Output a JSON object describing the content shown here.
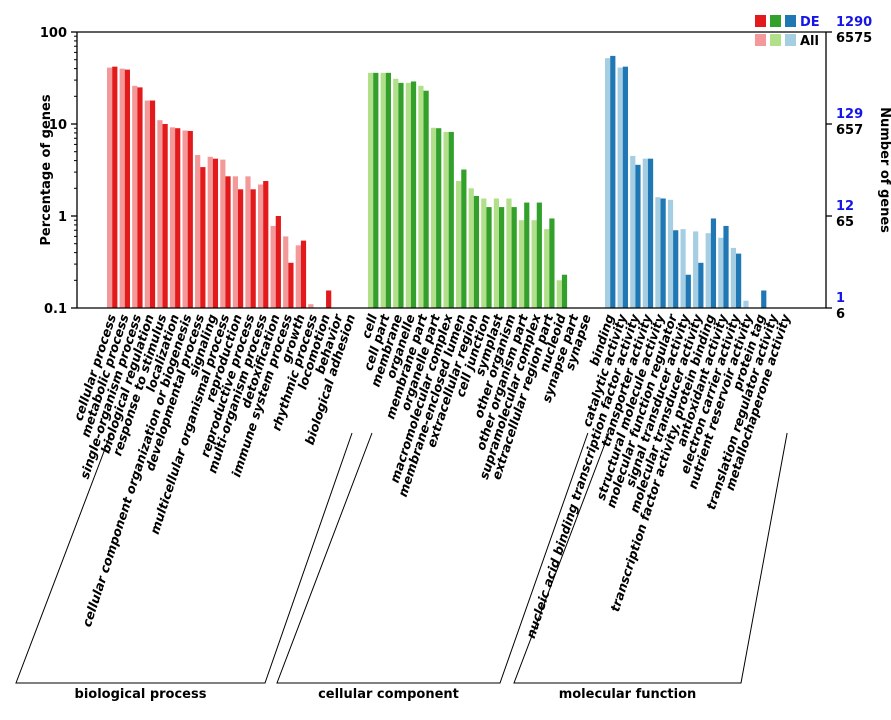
{
  "colors": {
    "bp_de": "#e31a1c",
    "bp_all": "#f4999a",
    "cc_de": "#33a02c",
    "cc_all": "#b2df8a",
    "mf_de": "#1f78b4",
    "mf_all": "#a6cee3",
    "right_de_ticks": "#1515e6",
    "axis": "#000000"
  },
  "chart_data": {
    "type": "bar",
    "scale": "log",
    "ylabel": "Percentage of genes",
    "y2label": "Number of genes",
    "ylim": [
      0.1,
      100
    ],
    "left_ticks": [
      "100",
      "10",
      "1",
      "0.1"
    ],
    "right_ticks_de": [
      "1290",
      "129",
      "12",
      "1"
    ],
    "right_ticks_all": [
      "6575",
      "657",
      "65",
      "6"
    ],
    "legend": {
      "de_label": "DE",
      "all_label": "All",
      "position": "top-right"
    },
    "series": [
      {
        "name": "All",
        "role": "all"
      },
      {
        "name": "DE",
        "role": "de"
      }
    ],
    "groups": [
      {
        "name": "biological process",
        "key": "bp",
        "categories": [
          {
            "label": "cellular process",
            "all": 41,
            "de": 42
          },
          {
            "label": "metabolic process",
            "all": 40,
            "de": 39
          },
          {
            "label": "single-organism process",
            "all": 26,
            "de": 25
          },
          {
            "label": "biological regulation",
            "all": 18,
            "de": 18
          },
          {
            "label": "response to stimulus",
            "all": 11,
            "de": 10
          },
          {
            "label": "localization",
            "all": 9.2,
            "de": 9
          },
          {
            "label": "cellular component organization or biogenesis",
            "all": 8.5,
            "de": 8.4
          },
          {
            "label": "developmental process",
            "all": 4.6,
            "de": 3.4
          },
          {
            "label": "signaling",
            "all": 4.4,
            "de": 4.2
          },
          {
            "label": "multicellular organismal process",
            "all": 4.1,
            "de": 2.7
          },
          {
            "label": "reproduction",
            "all": 2.7,
            "de": 1.95
          },
          {
            "label": "reproductive process",
            "all": 2.7,
            "de": 1.95
          },
          {
            "label": "multi-organism process",
            "all": 2.2,
            "de": 2.4
          },
          {
            "label": "detoxification",
            "all": 0.78,
            "de": 1.0
          },
          {
            "label": "immune system process",
            "all": 0.6,
            "de": 0.31
          },
          {
            "label": "growth",
            "all": 0.48,
            "de": 0.54
          },
          {
            "label": "rhythmic process",
            "all": 0.11,
            "de": 0
          },
          {
            "label": "locomotion",
            "all": 0,
            "de": 0.155
          },
          {
            "label": "behavior",
            "all": 0,
            "de": 0
          },
          {
            "label": "biological adhesion",
            "all": 0,
            "de": 0
          }
        ]
      },
      {
        "name": "cellular component",
        "key": "cc",
        "categories": [
          {
            "label": "cell",
            "all": 36,
            "de": 36
          },
          {
            "label": "cell part",
            "all": 36,
            "de": 36
          },
          {
            "label": "membrane",
            "all": 31,
            "de": 28
          },
          {
            "label": "organelle",
            "all": 28,
            "de": 29
          },
          {
            "label": "membrane part",
            "all": 26,
            "de": 23
          },
          {
            "label": "organelle part",
            "all": 9.1,
            "de": 9.0
          },
          {
            "label": "macromolecular complex",
            "all": 8.2,
            "de": 8.2
          },
          {
            "label": "membrane-enclosed lumen",
            "all": 2.4,
            "de": 3.2
          },
          {
            "label": "extracellular region",
            "all": 2.0,
            "de": 1.65
          },
          {
            "label": "cell junction",
            "all": 1.55,
            "de": 1.25
          },
          {
            "label": "symplast",
            "all": 1.55,
            "de": 1.25
          },
          {
            "label": "other organism",
            "all": 1.55,
            "de": 1.25
          },
          {
            "label": "other organism part",
            "all": 0.9,
            "de": 1.4
          },
          {
            "label": "supramolecular complex",
            "all": 0.9,
            "de": 1.4
          },
          {
            "label": "extracellular region part",
            "all": 0.72,
            "de": 0.94
          },
          {
            "label": "nucleoid",
            "all": 0.2,
            "de": 0.23
          },
          {
            "label": "synapse part",
            "all": 0,
            "de": 0
          },
          {
            "label": "synapse",
            "all": 0,
            "de": 0
          }
        ]
      },
      {
        "name": "molecular function",
        "key": "mf",
        "categories": [
          {
            "label": "binding",
            "all": 52,
            "de": 55
          },
          {
            "label": "catalytic activity",
            "all": 41,
            "de": 42
          },
          {
            "label": "nucleic acid binding transcription factor activity",
            "all": 4.5,
            "de": 3.6
          },
          {
            "label": "transporter activity",
            "all": 4.2,
            "de": 4.2
          },
          {
            "label": "structural molecule activity",
            "all": 1.6,
            "de": 1.55
          },
          {
            "label": "molecular function regulator",
            "all": 1.5,
            "de": 0.7
          },
          {
            "label": "signal transducer activity",
            "all": 0.72,
            "de": 0.23
          },
          {
            "label": "molecular transducer activity",
            "all": 0.68,
            "de": 0.31
          },
          {
            "label": "transcription factor activity, protein binding",
            "all": 0.65,
            "de": 0.94
          },
          {
            "label": "antioxidant activity",
            "all": 0.58,
            "de": 0.78
          },
          {
            "label": "electron carrier activity",
            "all": 0.45,
            "de": 0.39
          },
          {
            "label": "nutrient reservoir activity",
            "all": 0.12,
            "de": 0
          },
          {
            "label": "protein tag",
            "all": 0,
            "de": 0.155
          },
          {
            "label": "translation regulator activity",
            "all": 0,
            "de": 0
          },
          {
            "label": "metallochaperone activity",
            "all": 0,
            "de": 0
          }
        ]
      }
    ]
  }
}
